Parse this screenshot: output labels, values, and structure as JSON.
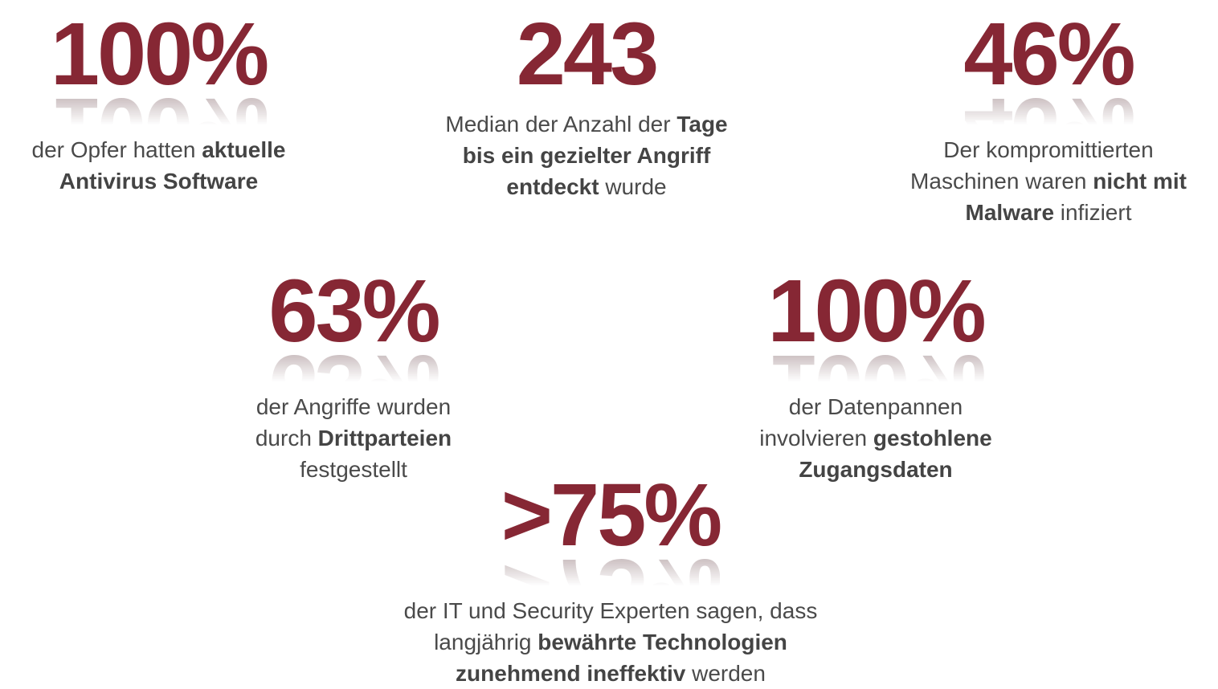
{
  "stats": [
    {
      "value": "100%",
      "line1_pre": "der Opfer hatten ",
      "line1_bold": "aktuelle",
      "line2_bold": "Antivirus Software"
    },
    {
      "value": "243",
      "line1_pre": "Median der Anzahl der ",
      "line1_bold": "Tage",
      "line2_bold": "bis ein gezielter Angriff",
      "line3_bold": "entdeckt",
      "line3_post": " wurde"
    },
    {
      "value": "46%",
      "line1_pre": "Der kompromittierten",
      "line2_pre": "Maschinen waren ",
      "line2_bold": "nicht mit",
      "line3_bold": "Malware",
      "line3_post": " infiziert"
    },
    {
      "value": "63%",
      "line1_pre": "der Angriffe wurden",
      "line2_pre": "durch ",
      "line2_bold": "Drittparteien",
      "line3_pre": "festgestellt"
    },
    {
      "value": "100%",
      "line1_pre": "der Datenpannen",
      "line2_pre": "involvieren ",
      "line2_bold": "gestohlene",
      "line3_bold": "Zugangsdaten"
    },
    {
      "value": ">75%",
      "line1_pre": "der IT und Security Experten sagen, dass",
      "line2_pre": "langjährig ",
      "line2_bold": "bewährte Technologien",
      "line3_bold": "zunehmend ineffektiv",
      "line3_post": " werden"
    }
  ],
  "colors": {
    "accent": "#862734",
    "text": "#4a4a4a"
  }
}
